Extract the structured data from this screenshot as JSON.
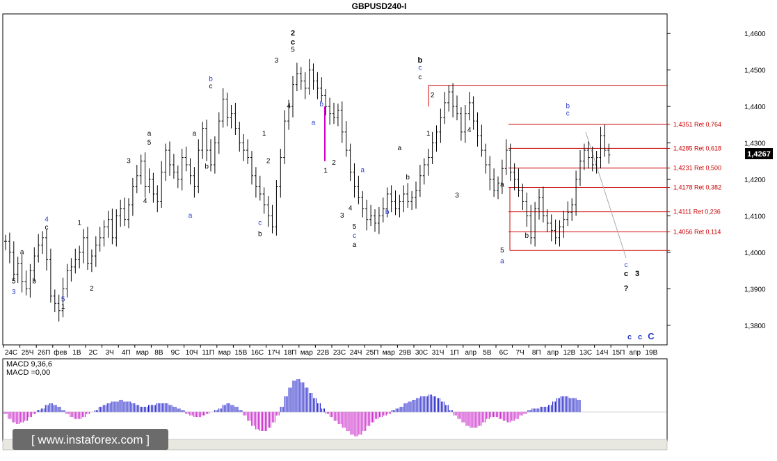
{
  "title": "GBPUSD240-I",
  "watermark": "[ www.instaforex.com ]",
  "colors": {
    "background": "#ffffff",
    "candle": "#000000",
    "fib": "#cc0000",
    "blue_label": "#2a3bc8",
    "macd_positive": "#1c1cc8",
    "macd_negative": "#c81cc8",
    "last_price_box": "#000000"
  },
  "chart_data": {
    "type": "candlestick",
    "symbol": "GBPUSD",
    "timeframe": "H4",
    "y_axis": {
      "range": [
        1.375,
        1.465
      ],
      "ticks": [
        "1,4600",
        "1,4500",
        "1,4400",
        "1,4300",
        "1,4200",
        "1,4100",
        "1,4000",
        "1,3900",
        "1,3800"
      ],
      "tick_values": [
        1.46,
        1.45,
        1.44,
        1.43,
        1.42,
        1.41,
        1.4,
        1.39,
        1.38
      ]
    },
    "x_axis_labels": [
      "24С",
      "25Ч",
      "26П",
      "фев",
      "1В",
      "2С",
      "3Ч",
      "4П",
      "мар",
      "8В",
      "9С",
      "10Ч",
      "11П",
      "мар",
      "15В",
      "16С",
      "17Ч",
      "18П",
      "мар",
      "22В",
      "23С",
      "24Ч",
      "25П",
      "мар",
      "29В",
      "30С",
      "31Ч",
      "1П",
      "апр",
      "5В",
      "6С",
      "7Ч",
      "8П",
      "апр",
      "12В",
      "13С",
      "14Ч",
      "15П",
      "апр",
      "19В"
    ],
    "last_price": "1,4267",
    "last_value": 1.4267,
    "price_path": [
      1.403,
      1.4,
      1.394,
      1.397,
      1.392,
      1.39,
      1.395,
      1.399,
      1.402,
      1.404,
      1.398,
      1.388,
      1.386,
      1.384,
      1.39,
      1.395,
      1.396,
      1.398,
      1.4,
      1.404,
      1.397,
      1.399,
      1.402,
      1.404,
      1.407,
      1.409,
      1.404,
      1.41,
      1.412,
      1.409,
      1.413,
      1.418,
      1.421,
      1.425,
      1.418,
      1.42,
      1.416,
      1.414,
      1.422,
      1.428,
      1.424,
      1.422,
      1.42,
      1.426,
      1.424,
      1.421,
      1.418,
      1.428,
      1.434,
      1.428,
      1.424,
      1.43,
      1.436,
      1.442,
      1.437,
      1.438,
      1.434,
      1.43,
      1.428,
      1.426,
      1.421,
      1.418,
      1.416,
      1.413,
      1.41,
      1.407,
      1.418,
      1.426,
      1.436,
      1.44,
      1.446,
      1.449,
      1.447,
      1.445,
      1.45,
      1.447,
      1.445,
      1.443,
      1.44,
      1.438,
      1.437,
      1.439,
      1.433,
      1.428,
      1.422,
      1.418,
      1.415,
      1.412,
      1.409,
      1.41,
      1.408,
      1.41,
      1.412,
      1.416,
      1.414,
      1.412,
      1.414,
      1.416,
      1.414,
      1.415,
      1.417,
      1.421,
      1.424,
      1.426,
      1.43,
      1.433,
      1.437,
      1.441,
      1.444,
      1.44,
      1.438,
      1.433,
      1.438,
      1.441,
      1.436,
      1.432,
      1.428,
      1.424,
      1.42,
      1.417,
      1.419,
      1.423,
      1.428,
      1.422,
      1.42,
      1.417,
      1.414,
      1.41,
      1.404,
      1.412,
      1.415,
      1.41,
      1.408,
      1.406,
      1.404,
      1.407,
      1.409,
      1.411,
      1.413,
      1.42,
      1.425,
      1.428,
      1.426,
      1.424,
      1.426,
      1.432,
      1.428,
      1.4267
    ],
    "fib_levels": [
      {
        "value": 1.4351,
        "label": "1,4351 Ret 0,764"
      },
      {
        "value": 1.4285,
        "label": "1,4285 Ret 0,618"
      },
      {
        "value": 1.4231,
        "label": "1,4231 Ret 0,500"
      },
      {
        "value": 1.4178,
        "label": "1,4178 Ret 0,382"
      },
      {
        "value": 1.4111,
        "label": "1,4111 Ret 0,236"
      },
      {
        "value": 1.4056,
        "label": "1,4056 Ret 0,114"
      }
    ],
    "extra_levels": [
      1.4458,
      1.4005
    ],
    "wave_labels": [
      {
        "t": "5",
        "c": "black",
        "bar": 2,
        "v": 1.3915
      },
      {
        "t": "3",
        "c": "blue",
        "bar": 2,
        "v": 1.3885
      },
      {
        "t": "a",
        "c": "black",
        "bar": 4,
        "v": 1.3995
      },
      {
        "t": "b",
        "c": "black",
        "bar": 7,
        "v": 1.3915
      },
      {
        "t": "4",
        "c": "blue",
        "bar": 10,
        "v": 1.4085
      },
      {
        "t": "c",
        "c": "black",
        "bar": 10,
        "v": 1.4063
      },
      {
        "t": "5",
        "c": "blue",
        "bar": 14,
        "v": 1.3865
      },
      {
        "t": "1",
        "c": "black",
        "bar": 14,
        "v": 1.3845
      },
      {
        "t": "1",
        "c": "black",
        "bar": 18,
        "v": 1.4075
      },
      {
        "t": "2",
        "c": "black",
        "bar": 21,
        "v": 1.3895
      },
      {
        "t": "3",
        "c": "black",
        "bar": 30,
        "v": 1.4245
      },
      {
        "t": "4",
        "c": "black",
        "bar": 34,
        "v": 1.4135
      },
      {
        "t": "5",
        "c": "black",
        "bar": 35,
        "v": 1.4295
      },
      {
        "t": "a",
        "c": "black",
        "bar": 35,
        "v": 1.432
      },
      {
        "t": "a",
        "c": "blue",
        "bar": 45,
        "v": 1.4095
      },
      {
        "t": "a",
        "c": "black",
        "bar": 46,
        "v": 1.432
      },
      {
        "t": "b",
        "c": "black",
        "bar": 49,
        "v": 1.423
      },
      {
        "t": "b",
        "c": "blue",
        "bar": 50,
        "v": 1.447
      },
      {
        "t": "c",
        "c": "black",
        "bar": 50,
        "v": 1.445
      },
      {
        "t": "1",
        "c": "black",
        "bar": 63,
        "v": 1.432
      },
      {
        "t": "2",
        "c": "black",
        "bar": 64,
        "v": 1.4245
      },
      {
        "t": "3",
        "c": "black",
        "bar": 66,
        "v": 1.452
      },
      {
        "t": "c",
        "c": "blue",
        "bar": 62,
        "v": 1.4075
      },
      {
        "t": "b",
        "c": "black",
        "bar": 62,
        "v": 1.4045
      },
      {
        "t": "4",
        "c": "black",
        "bar": 69,
        "v": 1.4395
      },
      {
        "t": "5",
        "c": "black",
        "bar": 70,
        "v": 1.455
      },
      {
        "t": "c",
        "c": "black",
        "bar": 70,
        "v": 1.457
      },
      {
        "t": "2",
        "c": "black",
        "bar": 70,
        "v": 1.4595
      },
      {
        "t": "a",
        "c": "blue",
        "bar": 75,
        "v": 1.435
      },
      {
        "t": "b",
        "c": "blue",
        "bar": 77,
        "v": 1.44
      },
      {
        "t": "1",
        "c": "black",
        "bar": 78,
        "v": 1.4218
      },
      {
        "t": "2",
        "c": "black",
        "bar": 80,
        "v": 1.424
      },
      {
        "t": "3",
        "c": "black",
        "bar": 82,
        "v": 1.4095
      },
      {
        "t": "4",
        "c": "black",
        "bar": 84,
        "v": 1.4115
      },
      {
        "t": "5",
        "c": "black",
        "bar": 85,
        "v": 1.4065
      },
      {
        "t": "c",
        "c": "blue",
        "bar": 85,
        "v": 1.404
      },
      {
        "t": "a",
        "c": "black",
        "bar": 85,
        "v": 1.4015
      },
      {
        "t": "a",
        "c": "blue",
        "bar": 87,
        "v": 1.422
      },
      {
        "t": "b",
        "c": "blue",
        "bar": 93,
        "v": 1.4105
      },
      {
        "t": "a",
        "c": "black",
        "bar": 96,
        "v": 1.428
      },
      {
        "t": "b",
        "c": "black",
        "bar": 98,
        "v": 1.42
      },
      {
        "t": "c",
        "c": "blue",
        "bar": 101,
        "v": 1.45
      },
      {
        "t": "c",
        "c": "black",
        "bar": 101,
        "v": 1.4475
      },
      {
        "t": "b",
        "c": "black",
        "bar": 101,
        "v": 1.452
      },
      {
        "t": "2",
        "c": "black",
        "bar": 104,
        "v": 1.4425
      },
      {
        "t": "1",
        "c": "black",
        "bar": 103,
        "v": 1.432
      },
      {
        "t": "4",
        "c": "black",
        "bar": 113,
        "v": 1.433
      },
      {
        "t": "3",
        "c": "black",
        "bar": 110,
        "v": 1.415
      },
      {
        "t": "a",
        "c": "black",
        "bar": 121,
        "v": 1.418
      },
      {
        "t": "5",
        "c": "black",
        "bar": 121,
        "v": 1.4
      },
      {
        "t": "a",
        "c": "blue",
        "bar": 121,
        "v": 1.397
      },
      {
        "t": "b",
        "c": "black",
        "bar": 127,
        "v": 1.404
      },
      {
        "t": "b",
        "c": "blue",
        "bar": 137,
        "v": 1.4395
      },
      {
        "t": "c",
        "c": "blue",
        "bar": 137,
        "v": 1.4375
      }
    ],
    "projection": [
      {
        "t": "c",
        "c": "blue",
        "v": 1.396
      },
      {
        "t": "c",
        "c": "black",
        "v": 1.3935
      },
      {
        "t": "?",
        "c": "black",
        "v": 1.3895
      },
      {
        "t": "3",
        "c": "black",
        "v": 1.3935
      }
    ],
    "bottom_labels": [
      {
        "t": "c",
        "c": "blue"
      },
      {
        "t": "c",
        "c": "blue"
      },
      {
        "t": "C",
        "c": "blue"
      }
    ],
    "magenta_marker": {
      "from": 1.44,
      "to": 1.425
    },
    "trendline": {
      "from": 1.433,
      "to": 1.3985
    }
  },
  "macd": {
    "label_top": "MACD 9,36,6",
    "label_bottom": "MACD =0,00",
    "values": [
      -0.1,
      -0.4,
      -0.6,
      -0.7,
      -0.6,
      -0.5,
      -0.3,
      -0.1,
      0.1,
      0.2,
      0.4,
      0.5,
      0.4,
      0.3,
      0.1,
      -0.1,
      -0.3,
      -0.4,
      -0.4,
      -0.3,
      -0.1,
      0.0,
      0.1,
      0.3,
      0.4,
      0.5,
      0.6,
      0.6,
      0.7,
      0.6,
      0.6,
      0.5,
      0.4,
      0.3,
      0.3,
      0.4,
      0.4,
      0.5,
      0.5,
      0.5,
      0.4,
      0.3,
      0.2,
      0.1,
      -0.1,
      -0.2,
      -0.3,
      -0.3,
      -0.2,
      -0.1,
      0.0,
      0.1,
      0.2,
      0.4,
      0.5,
      0.4,
      0.3,
      0.1,
      -0.2,
      -0.5,
      -0.8,
      -1.0,
      -1.1,
      -1.1,
      -0.9,
      -0.6,
      -0.2,
      0.3,
      0.9,
      1.4,
      1.8,
      1.9,
      1.7,
      1.4,
      1.1,
      0.8,
      0.5,
      0.2,
      -0.1,
      -0.3,
      -0.5,
      -0.7,
      -0.9,
      -1.1,
      -1.3,
      -1.4,
      -1.3,
      -1.1,
      -0.8,
      -0.6,
      -0.4,
      -0.3,
      -0.2,
      -0.1,
      0.1,
      0.2,
      0.3,
      0.5,
      0.6,
      0.7,
      0.8,
      0.9,
      0.9,
      1.0,
      0.9,
      0.8,
      0.6,
      0.4,
      0.1,
      -0.2,
      -0.4,
      -0.6,
      -0.8,
      -0.9,
      -0.9,
      -0.8,
      -0.6,
      -0.4,
      -0.3,
      -0.3,
      -0.4,
      -0.5,
      -0.6,
      -0.5,
      -0.4,
      -0.2,
      -0.1,
      0.1,
      0.2,
      0.2,
      0.3,
      0.3,
      0.4,
      0.6,
      0.8,
      0.9,
      0.9,
      0.8,
      0.8,
      0.7
    ],
    "range": [
      -1.5,
      2.1
    ]
  }
}
